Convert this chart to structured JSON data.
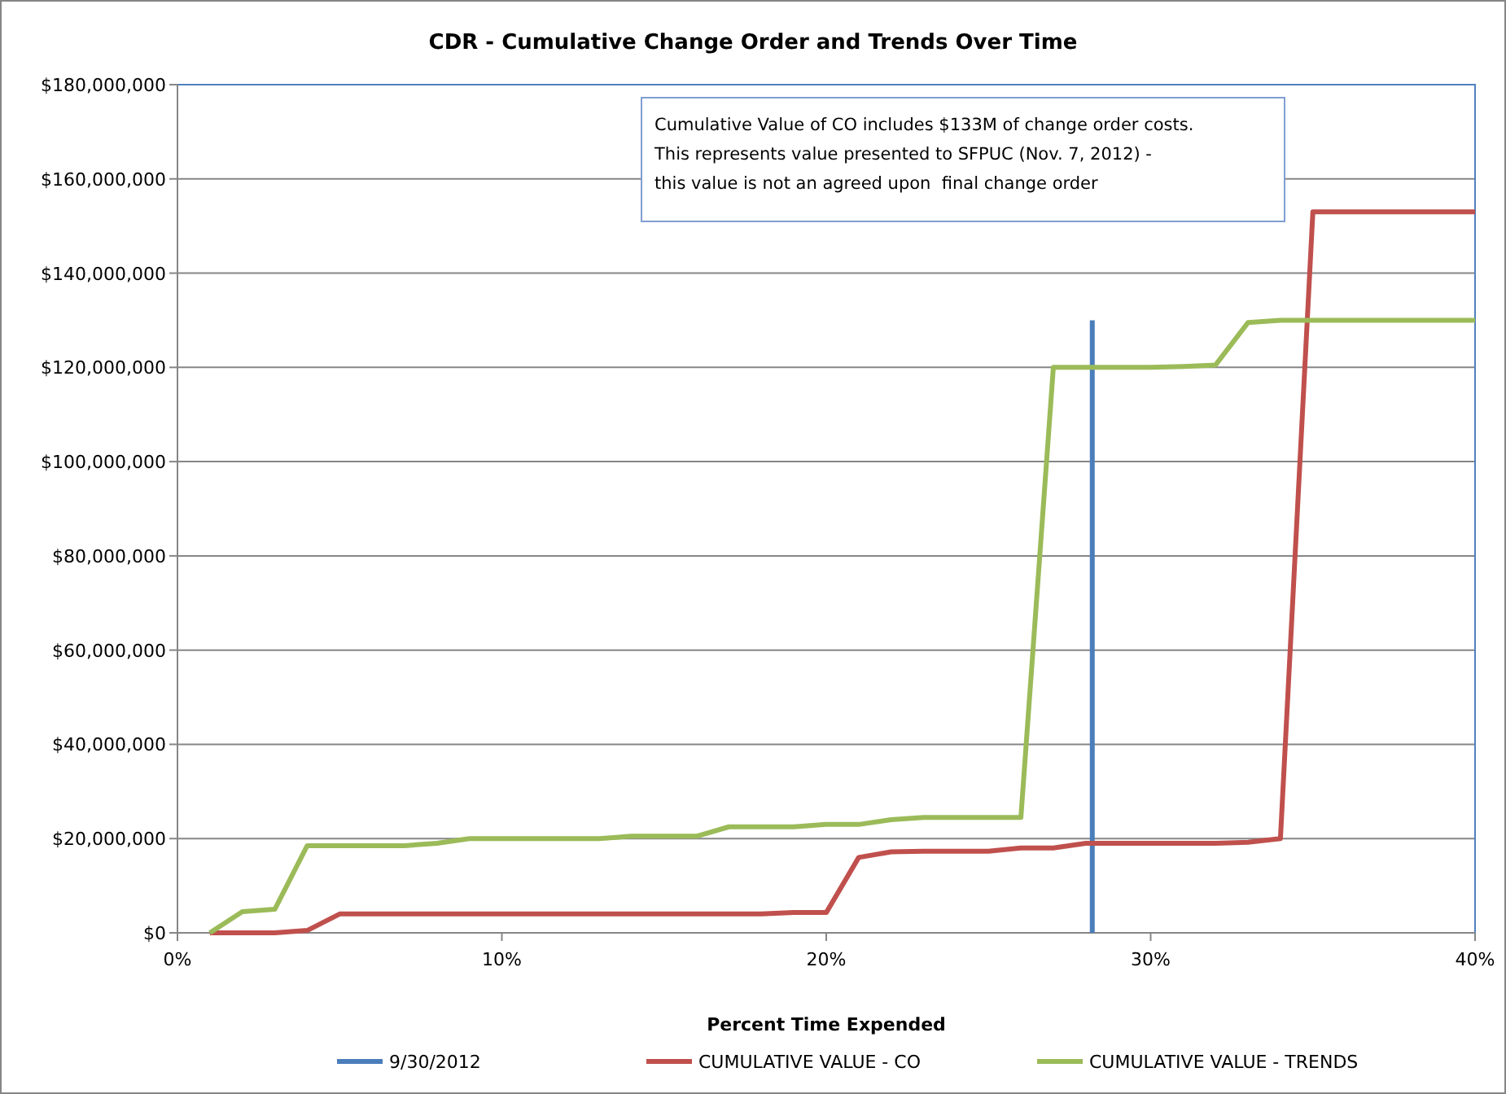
{
  "chart_data": {
    "type": "line",
    "title": "CDR - Cumulative Change Order and Trends  Over Time",
    "xlabel": "Percent Time Expended",
    "annotations": [
      "Cumulative Value of CO includes $133M of change order costs.  This represents value presented to SFPUC (Nov. 7, 2012) - this value is not an agreed upon  final change order"
    ],
    "xlim": [
      0,
      40
    ],
    "xticks": [
      {
        "value": 0,
        "label": "0%"
      },
      {
        "value": 10,
        "label": "10%"
      },
      {
        "value": 20,
        "label": "20%"
      },
      {
        "value": 30,
        "label": "30%"
      },
      {
        "value": 40,
        "label": "40%"
      }
    ],
    "ylim": [
      0,
      180000000
    ],
    "yticks": [
      {
        "value": 0,
        "label": "$0"
      },
      {
        "value": 20000000,
        "label": "$20,000,000"
      },
      {
        "value": 40000000,
        "label": "$40,000,000"
      },
      {
        "value": 60000000,
        "label": "$60,000,000"
      },
      {
        "value": 80000000,
        "label": "$80,000,000"
      },
      {
        "value": 100000000,
        "label": "$100,000,000"
      },
      {
        "value": 120000000,
        "label": "$120,000,000"
      },
      {
        "value": 140000000,
        "label": "$140,000,000"
      },
      {
        "value": 160000000,
        "label": "$160,000,000"
      },
      {
        "value": 180000000,
        "label": "$180,000,000"
      }
    ],
    "grid": "y",
    "legend": "bottom",
    "marker": "none",
    "series": [
      {
        "name": "9/30/2012",
        "color": "#4a7ebb",
        "x": [
          28.2,
          28.2
        ],
        "values": [
          0,
          130000000
        ]
      },
      {
        "name": "CUMULATIVE VALUE - CO",
        "color": "#c0504d",
        "x": [
          1,
          2,
          3,
          4,
          5,
          6,
          7,
          8,
          9,
          10,
          11,
          12,
          13,
          14,
          15,
          16,
          17,
          18,
          19,
          20,
          21,
          22,
          23,
          24,
          25,
          26,
          27,
          28,
          29,
          30,
          31,
          32,
          33,
          34,
          35,
          36,
          37,
          38,
          39,
          40
        ],
        "values": [
          0,
          0,
          0,
          500000,
          4000000,
          4000000,
          4000000,
          4000000,
          4000000,
          4000000,
          4000000,
          4000000,
          4000000,
          4000000,
          4000000,
          4000000,
          4000000,
          4000000,
          4300000,
          4300000,
          16000000,
          17200000,
          17300000,
          17300000,
          17300000,
          18000000,
          18000000,
          19000000,
          19000000,
          19000000,
          19000000,
          19000000,
          19200000,
          20000000,
          153000000,
          153000000,
          153000000,
          153000000,
          153000000,
          153000000
        ]
      },
      {
        "name": "CUMULATIVE VALUE - TRENDS",
        "color": "#9bbb59",
        "x": [
          1,
          2,
          3,
          4,
          5,
          6,
          7,
          8,
          9,
          10,
          11,
          12,
          13,
          14,
          15,
          16,
          17,
          18,
          19,
          20,
          21,
          22,
          23,
          24,
          25,
          26,
          27,
          28,
          29,
          30,
          31,
          32,
          33,
          34,
          35,
          36,
          37,
          38,
          39,
          40
        ],
        "values": [
          0,
          4500000,
          5000000,
          18500000,
          18500000,
          18500000,
          18500000,
          19000000,
          20000000,
          20000000,
          20000000,
          20000000,
          20000000,
          20500000,
          20500000,
          20500000,
          22500000,
          22500000,
          22500000,
          23000000,
          23000000,
          24000000,
          24500000,
          24500000,
          24500000,
          24500000,
          120000000,
          120000000,
          120000000,
          120000000,
          120200000,
          120500000,
          129500000,
          130000000,
          130000000,
          130000000,
          130000000,
          130000000,
          130000000,
          130000000
        ]
      }
    ]
  }
}
